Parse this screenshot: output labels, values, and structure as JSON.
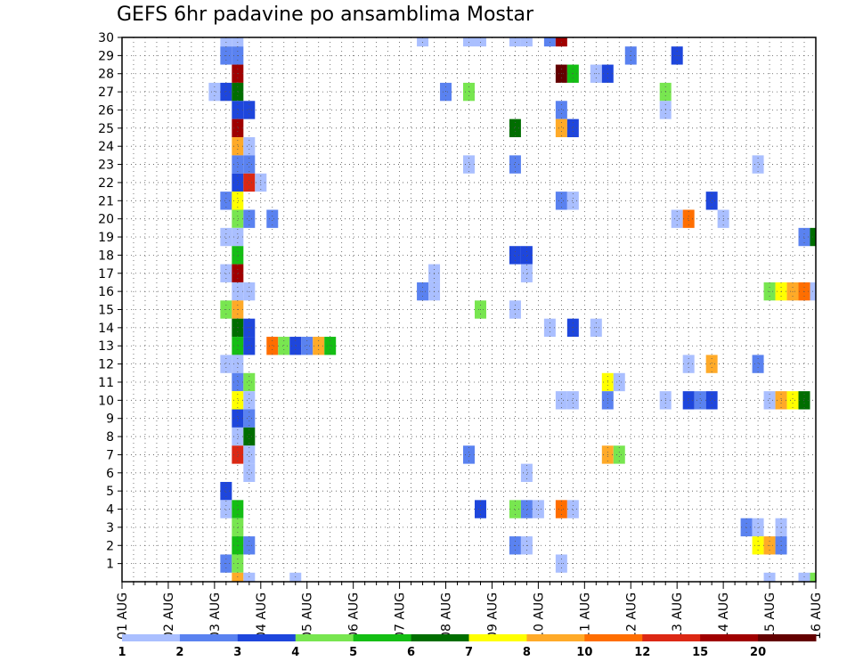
{
  "chart_data": {
    "type": "heatmap",
    "title": "GEFS 6hr padavine po ansamblima Mostar",
    "y_ticks": [
      "1",
      "2",
      "3",
      "4",
      "5",
      "6",
      "7",
      "8",
      "9",
      "10",
      "11",
      "12",
      "13",
      "14",
      "15",
      "16",
      "17",
      "18",
      "19",
      "20",
      "21",
      "22",
      "23",
      "24",
      "25",
      "26",
      "27",
      "28",
      "29",
      "30"
    ],
    "y_range": [
      0,
      30
    ],
    "x_ticks": [
      "01 AUG",
      "02 AUG",
      "03 AUG",
      "04 AUG",
      "05 AUG",
      "06 AUG",
      "07 AUG",
      "08 AUG",
      "09 AUG",
      "10 AUG",
      "11 AUG",
      "12 AUG",
      "13 AUG",
      "14 AUG",
      "15 AUG",
      "16 AUG"
    ],
    "x_range_steps": [
      0,
      60
    ],
    "steps_per_day": 4,
    "grid": true,
    "legend": {
      "placement": "bottom",
      "labels": [
        "1",
        "2",
        "3",
        "4",
        "5",
        "6",
        "7",
        "8",
        "10",
        "12",
        "15",
        "20"
      ],
      "colors": [
        "#aabfff",
        "#5a82f0",
        "#1e46dc",
        "#78e650",
        "#14be14",
        "#006e00",
        "#ffff00",
        "#ffaa28",
        "#ff6e00",
        "#dc2814",
        "#a00000",
        "#640000"
      ]
    },
    "class_colors": {
      "1": "#aabfff",
      "2": "#5a82f0",
      "3": "#1e46dc",
      "4": "#78e650",
      "5": "#14be14",
      "6": "#006e00",
      "7": "#ffff00",
      "8": "#ffaa28",
      "9": "#ff6e00",
      "10": "#dc2814",
      "11": "#a00000",
      "12": "#640000"
    },
    "cells": [
      [
        9,
        30,
        1
      ],
      [
        10,
        30,
        1
      ],
      [
        26,
        30,
        1
      ],
      [
        30,
        30,
        1
      ],
      [
        31,
        30,
        1
      ],
      [
        34,
        30,
        1
      ],
      [
        35,
        30,
        1
      ],
      [
        37,
        30,
        2
      ],
      [
        38,
        30,
        11
      ],
      [
        9,
        29,
        2
      ],
      [
        10,
        29,
        2
      ],
      [
        44,
        29,
        2
      ],
      [
        48,
        29,
        3
      ],
      [
        10,
        28,
        11
      ],
      [
        38,
        28,
        12
      ],
      [
        39,
        28,
        5
      ],
      [
        41,
        28,
        1
      ],
      [
        42,
        28,
        3
      ],
      [
        8,
        27,
        1
      ],
      [
        9,
        27,
        3
      ],
      [
        10,
        27,
        6
      ],
      [
        28,
        27,
        2
      ],
      [
        30,
        27,
        4
      ],
      [
        47,
        27,
        4
      ],
      [
        10,
        26,
        3
      ],
      [
        11,
        26,
        3
      ],
      [
        38,
        26,
        2
      ],
      [
        47,
        26,
        1
      ],
      [
        10,
        25,
        11
      ],
      [
        34,
        25,
        6
      ],
      [
        38,
        25,
        8
      ],
      [
        39,
        25,
        3
      ],
      [
        10,
        24,
        8
      ],
      [
        11,
        24,
        1
      ],
      [
        10,
        23,
        2
      ],
      [
        11,
        23,
        2
      ],
      [
        30,
        23,
        1
      ],
      [
        34,
        23,
        2
      ],
      [
        55,
        23,
        1
      ],
      [
        10,
        22,
        3
      ],
      [
        11,
        22,
        10
      ],
      [
        12,
        22,
        1
      ],
      [
        9,
        21,
        2
      ],
      [
        10,
        21,
        7
      ],
      [
        38,
        21,
        2
      ],
      [
        39,
        21,
        1
      ],
      [
        51,
        21,
        3
      ],
      [
        10,
        20,
        4
      ],
      [
        11,
        20,
        2
      ],
      [
        13,
        20,
        2
      ],
      [
        48,
        20,
        1
      ],
      [
        49,
        20,
        9
      ],
      [
        52,
        20,
        1
      ],
      [
        9,
        19,
        1
      ],
      [
        10,
        19,
        1
      ],
      [
        59,
        19,
        2
      ],
      [
        60,
        19,
        6
      ],
      [
        10,
        18,
        5
      ],
      [
        34,
        18,
        3
      ],
      [
        35,
        18,
        3
      ],
      [
        9,
        17,
        1
      ],
      [
        10,
        17,
        11
      ],
      [
        27,
        17,
        1
      ],
      [
        35,
        17,
        1
      ],
      [
        10,
        16,
        1
      ],
      [
        11,
        16,
        1
      ],
      [
        26,
        16,
        2
      ],
      [
        27,
        16,
        1
      ],
      [
        56,
        16,
        4
      ],
      [
        57,
        16,
        7
      ],
      [
        58,
        16,
        8
      ],
      [
        59,
        16,
        9
      ],
      [
        60,
        16,
        1
      ],
      [
        9,
        15,
        4
      ],
      [
        10,
        15,
        8
      ],
      [
        31,
        15,
        4
      ],
      [
        34,
        15,
        1
      ],
      [
        10,
        14,
        6
      ],
      [
        11,
        14,
        3
      ],
      [
        37,
        14,
        1
      ],
      [
        39,
        14,
        3
      ],
      [
        41,
        14,
        1
      ],
      [
        10,
        13,
        5
      ],
      [
        11,
        13,
        3
      ],
      [
        13,
        13,
        9
      ],
      [
        14,
        13,
        4
      ],
      [
        15,
        13,
        3
      ],
      [
        16,
        13,
        2
      ],
      [
        17,
        13,
        8
      ],
      [
        18,
        13,
        5
      ],
      [
        9,
        12,
        1
      ],
      [
        10,
        12,
        1
      ],
      [
        49,
        12,
        1
      ],
      [
        51,
        12,
        8
      ],
      [
        55,
        12,
        2
      ],
      [
        10,
        11,
        2
      ],
      [
        11,
        11,
        4
      ],
      [
        42,
        11,
        7
      ],
      [
        43,
        11,
        1
      ],
      [
        10,
        10,
        7
      ],
      [
        11,
        10,
        1
      ],
      [
        38,
        10,
        1
      ],
      [
        39,
        10,
        1
      ],
      [
        42,
        10,
        2
      ],
      [
        47,
        10,
        1
      ],
      [
        49,
        10,
        3
      ],
      [
        50,
        10,
        2
      ],
      [
        51,
        10,
        3
      ],
      [
        56,
        10,
        1
      ],
      [
        57,
        10,
        8
      ],
      [
        58,
        10,
        7
      ],
      [
        59,
        10,
        6
      ],
      [
        10,
        9,
        3
      ],
      [
        11,
        9,
        2
      ],
      [
        10,
        8,
        1
      ],
      [
        11,
        8,
        6
      ],
      [
        10,
        7,
        10
      ],
      [
        11,
        7,
        1
      ],
      [
        30,
        7,
        2
      ],
      [
        42,
        7,
        8
      ],
      [
        43,
        7,
        4
      ],
      [
        11,
        6,
        1
      ],
      [
        35,
        6,
        1
      ],
      [
        9,
        5,
        3
      ],
      [
        9,
        4,
        1
      ],
      [
        10,
        4,
        5
      ],
      [
        31,
        4,
        3
      ],
      [
        34,
        4,
        4
      ],
      [
        35,
        4,
        2
      ],
      [
        36,
        4,
        1
      ],
      [
        38,
        4,
        9
      ],
      [
        39,
        4,
        1
      ],
      [
        10,
        3,
        4
      ],
      [
        54,
        3,
        2
      ],
      [
        55,
        3,
        1
      ],
      [
        57,
        3,
        1
      ],
      [
        10,
        2,
        5
      ],
      [
        11,
        2,
        2
      ],
      [
        34,
        2,
        2
      ],
      [
        35,
        2,
        1
      ],
      [
        55,
        2,
        7
      ],
      [
        56,
        2,
        8
      ],
      [
        57,
        2,
        2
      ],
      [
        9,
        1,
        2
      ],
      [
        10,
        1,
        4
      ],
      [
        38,
        1,
        1
      ],
      [
        10,
        0,
        8
      ],
      [
        11,
        0,
        1
      ],
      [
        15,
        0,
        1
      ],
      [
        56,
        0,
        1
      ],
      [
        59,
        0,
        1
      ],
      [
        60,
        0,
        4
      ]
    ]
  }
}
